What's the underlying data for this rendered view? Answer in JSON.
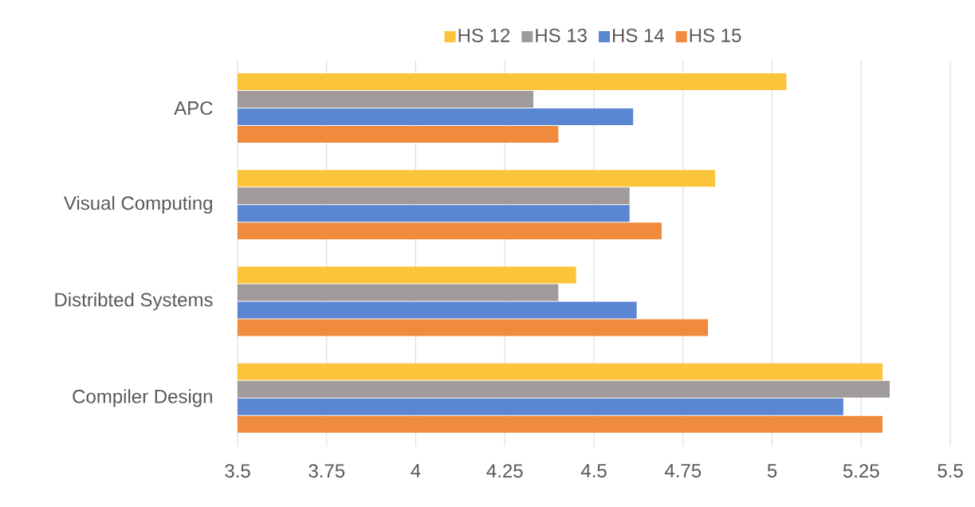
{
  "chart_data": {
    "type": "bar",
    "orientation": "horizontal",
    "categories": [
      "APC",
      "Visual Computing",
      "Distribted Systems",
      "Compiler Design"
    ],
    "series": [
      {
        "name": "HS 12",
        "color": "#fcc43a",
        "values": [
          5.04,
          4.84,
          4.45,
          5.31
        ]
      },
      {
        "name": "HS 13",
        "color": "#a09a9b",
        "values": [
          4.33,
          4.6,
          4.4,
          5.33
        ]
      },
      {
        "name": "HS 14",
        "color": "#5b86d1",
        "values": [
          4.61,
          4.6,
          4.62,
          5.2
        ]
      },
      {
        "name": "HS 15",
        "color": "#f08a3c",
        "values": [
          4.4,
          4.69,
          4.82,
          5.31
        ]
      }
    ],
    "xlim": [
      3.5,
      5.5
    ],
    "xticks": [
      3.5,
      3.75,
      4,
      4.25,
      4.5,
      4.75,
      5,
      5.25,
      5.5
    ],
    "grid": "x",
    "legend": "top"
  }
}
